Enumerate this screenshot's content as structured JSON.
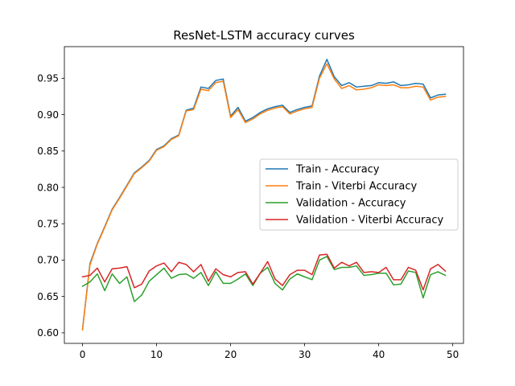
{
  "chart_data": {
    "type": "line",
    "title": "ResNet-LSTM accuracy curves",
    "xlabel": "",
    "ylabel": "",
    "xlim": [
      -2.45,
      51.45
    ],
    "ylim": [
      0.5855,
      0.9935
    ],
    "x_ticks": [
      0,
      10,
      20,
      30,
      40,
      50
    ],
    "y_ticks": [
      0.6,
      0.65,
      0.7,
      0.75,
      0.8,
      0.85,
      0.9,
      0.95
    ],
    "grid": false,
    "legend_position": "center-right",
    "x": [
      0,
      1,
      2,
      3,
      4,
      5,
      6,
      7,
      8,
      9,
      10,
      11,
      12,
      13,
      14,
      15,
      16,
      17,
      18,
      19,
      20,
      21,
      22,
      23,
      24,
      25,
      26,
      27,
      28,
      29,
      30,
      31,
      32,
      33,
      34,
      35,
      36,
      37,
      38,
      39,
      40,
      41,
      42,
      43,
      44,
      45,
      46,
      47,
      48,
      49
    ],
    "series": [
      {
        "name": "Train - Accuracy",
        "color": "#1f77b4",
        "values": [
          0.605,
          0.695,
          0.723,
          0.746,
          0.77,
          0.786,
          0.803,
          0.82,
          0.828,
          0.837,
          0.852,
          0.857,
          0.867,
          0.872,
          0.906,
          0.909,
          0.938,
          0.936,
          0.947,
          0.949,
          0.898,
          0.91,
          0.891,
          0.896,
          0.903,
          0.908,
          0.911,
          0.913,
          0.903,
          0.907,
          0.91,
          0.912,
          0.953,
          0.976,
          0.952,
          0.94,
          0.944,
          0.938,
          0.939,
          0.94,
          0.944,
          0.943,
          0.945,
          0.94,
          0.941,
          0.943,
          0.942,
          0.923,
          0.927,
          0.928
        ]
      },
      {
        "name": "Train - Viterbi Accuracy",
        "color": "#ff7f0e",
        "values": [
          0.604,
          0.693,
          0.722,
          0.745,
          0.769,
          0.785,
          0.802,
          0.819,
          0.827,
          0.836,
          0.851,
          0.856,
          0.866,
          0.871,
          0.905,
          0.907,
          0.935,
          0.933,
          0.944,
          0.946,
          0.896,
          0.907,
          0.889,
          0.894,
          0.901,
          0.906,
          0.909,
          0.911,
          0.901,
          0.905,
          0.908,
          0.91,
          0.95,
          0.97,
          0.949,
          0.936,
          0.94,
          0.934,
          0.935,
          0.937,
          0.941,
          0.94,
          0.941,
          0.937,
          0.937,
          0.939,
          0.938,
          0.92,
          0.924,
          0.925
        ]
      },
      {
        "name": "Validation - Accuracy",
        "color": "#2ca02c",
        "values": [
          0.664,
          0.67,
          0.681,
          0.658,
          0.681,
          0.668,
          0.677,
          0.643,
          0.652,
          0.671,
          0.68,
          0.689,
          0.675,
          0.68,
          0.681,
          0.675,
          0.683,
          0.665,
          0.684,
          0.668,
          0.668,
          0.674,
          0.681,
          0.665,
          0.682,
          0.69,
          0.668,
          0.659,
          0.674,
          0.681,
          0.677,
          0.673,
          0.7,
          0.705,
          0.687,
          0.69,
          0.69,
          0.692,
          0.679,
          0.68,
          0.682,
          0.682,
          0.666,
          0.667,
          0.685,
          0.683,
          0.648,
          0.68,
          0.684,
          0.679
        ]
      },
      {
        "name": "Validation - Viterbi Accuracy",
        "color": "#d62728",
        "values": [
          0.677,
          0.679,
          0.689,
          0.67,
          0.688,
          0.689,
          0.691,
          0.662,
          0.667,
          0.685,
          0.692,
          0.696,
          0.684,
          0.697,
          0.694,
          0.684,
          0.694,
          0.671,
          0.688,
          0.68,
          0.677,
          0.683,
          0.684,
          0.667,
          0.682,
          0.698,
          0.674,
          0.665,
          0.68,
          0.686,
          0.686,
          0.68,
          0.707,
          0.708,
          0.689,
          0.697,
          0.692,
          0.697,
          0.683,
          0.684,
          0.683,
          0.69,
          0.673,
          0.673,
          0.69,
          0.686,
          0.659,
          0.688,
          0.694,
          0.685
        ]
      }
    ]
  }
}
